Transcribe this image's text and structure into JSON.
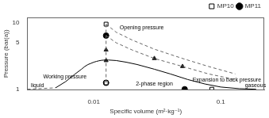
{
  "chart_data": {
    "type": "line",
    "log": true,
    "xlabel": "Specific volume (m²·kg⁻¹)",
    "ylabel": "Pressure (bar(a))",
    "xlim": [
      0.003,
      0.22
    ],
    "ylim": [
      0.97,
      12
    ],
    "xticks": [
      0.01,
      0.1
    ],
    "yticks": [
      1,
      5,
      10
    ],
    "grid": false,
    "legend": "upper right",
    "series": [
      {
        "x": [
          0.005,
          0.006,
          0.007,
          0.008,
          0.0085,
          0.009,
          0.0095,
          0.01,
          0.0105,
          0.011,
          0.0115,
          0.012,
          0.0125,
          0.013,
          0.015,
          0.018,
          0.022,
          0.03,
          0.04,
          0.055,
          0.075,
          0.1,
          0.14,
          0.19
        ],
        "values": [
          1.05,
          1.3,
          1.65,
          2.0,
          2.2,
          2.35,
          2.45,
          2.55,
          2.62,
          2.68,
          2.72,
          2.74,
          2.75,
          2.75,
          2.7,
          2.55,
          2.35,
          2.0,
          1.7,
          1.4,
          1.2,
          1.08,
          1.02,
          1.0
        ],
        "color": "#000000",
        "line_style": "solid",
        "marker": "none"
      },
      {
        "x": [
          0.003,
          0.005
        ],
        "values": [
          1.0,
          1.05
        ],
        "color": "#666666",
        "line_style": "dashed",
        "marker": "none"
      },
      {
        "x": [
          0.0125,
          0.015,
          0.02,
          0.03,
          0.05,
          0.08,
          0.13
        ],
        "values": [
          9.5,
          7.2,
          5.5,
          4.0,
          2.9,
          2.2,
          1.7
        ],
        "color": "#666666",
        "line_style": "dashed",
        "marker": "none"
      },
      {
        "x": [
          0.0125,
          0.015,
          0.02,
          0.03,
          0.05,
          0.08,
          0.13
        ],
        "values": [
          6.4,
          5.0,
          3.9,
          2.9,
          2.2,
          1.7,
          1.4
        ],
        "color": "#666666",
        "line_style": "dashed",
        "marker": "none"
      },
      {
        "x": [
          0.0125,
          0.0125
        ],
        "values": [
          1.25,
          9.5
        ],
        "color": "#666666",
        "line_style": "dashed",
        "marker": "none"
      },
      {
        "x": [
          0.0125,
          0.0125,
          0.03,
          0.05
        ],
        "values": [
          3.9,
          2.7,
          2.9,
          2.2
        ],
        "color": "#222222",
        "line_style": "none",
        "marker": "triangle"
      },
      {
        "name": "MP10",
        "x": [
          0.0125,
          0.0125,
          0.085
        ],
        "values": [
          9.5,
          1.25,
          1.0
        ],
        "color": "#000000",
        "line_style": "none",
        "marker": "open_square"
      },
      {
        "name": "MP11",
        "x": [
          0.0125,
          0.0125,
          0.052
        ],
        "values": [
          6.4,
          1.25,
          1.0
        ],
        "color": "#000000",
        "line_style": "none",
        "marker": "circle"
      }
    ],
    "annotations": [
      {
        "text": "Opening pressure",
        "x": 0.016,
        "y": 8.5
      },
      {
        "text": "Working pressure",
        "x": 0.004,
        "y": 1.55
      },
      {
        "text": "Expansion to back pressure",
        "x": 0.06,
        "y": 1.38
      },
      {
        "text": "liquid",
        "x": 0.0032,
        "y": 1.02
      },
      {
        "text": "gaseous",
        "x": 0.155,
        "y": 1.02
      },
      {
        "text": "2-phase region",
        "x": 0.03,
        "y": 1.1
      }
    ]
  }
}
